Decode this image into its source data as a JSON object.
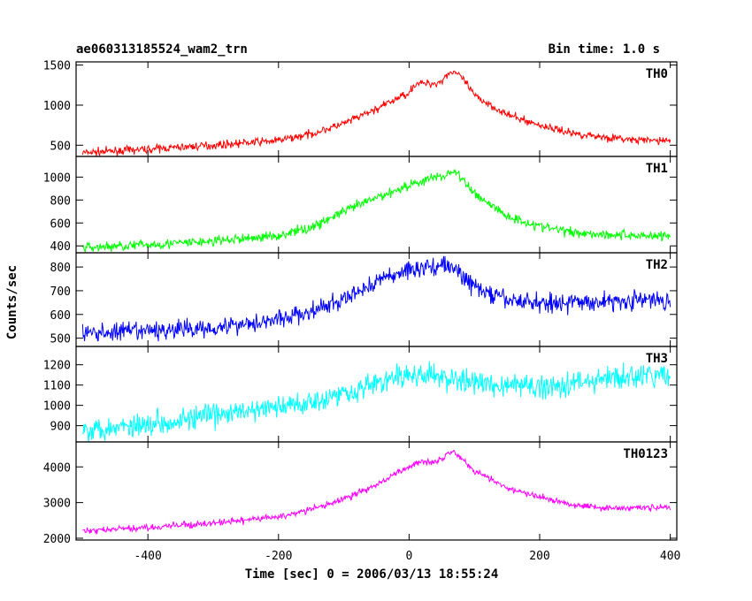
{
  "chart_data": {
    "type": "line",
    "title": "ae060313185524_wam2_trn",
    "bin_time_label": "Bin time: 1.0 s",
    "xlabel": "Time [sec] 0 = 2006/03/13 18:55:24",
    "ylabel": "Counts/sec",
    "xlim": [
      -510,
      410
    ],
    "xticks": [
      -400,
      -200,
      0,
      200,
      400
    ],
    "grid": false,
    "panels": [
      {
        "name": "TH0",
        "color": "#ff0000",
        "ylim": [
          360,
          1540
        ],
        "yticks": [
          500,
          1000,
          1500
        ],
        "noise": 24,
        "x": [
          -500,
          -400,
          -300,
          -200,
          -150,
          -100,
          -50,
          0,
          10,
          40,
          50,
          60,
          70,
          85,
          100,
          150,
          200,
          250,
          300,
          350,
          400
        ],
        "y": [
          405,
          450,
          500,
          560,
          640,
          770,
          950,
          1160,
          1270,
          1270,
          1300,
          1400,
          1420,
          1300,
          1120,
          880,
          750,
          650,
          600,
          560,
          560
        ]
      },
      {
        "name": "TH1",
        "color": "#00ff00",
        "ylim": [
          340,
          1180
        ],
        "yticks": [
          400,
          600,
          800,
          1000
        ],
        "noise": 22,
        "x": [
          -500,
          -400,
          -300,
          -200,
          -150,
          -100,
          -50,
          0,
          40,
          55,
          70,
          85,
          100,
          150,
          200,
          250,
          300,
          350,
          400
        ],
        "y": [
          385,
          410,
          440,
          490,
          560,
          700,
          820,
          930,
          1000,
          1010,
          1060,
          950,
          860,
          660,
          570,
          520,
          500,
          490,
          490
        ]
      },
      {
        "name": "TH2",
        "color": "#0000ff",
        "ylim": [
          465,
          860
        ],
        "yticks": [
          500,
          600,
          700,
          800
        ],
        "noise": 20,
        "x": [
          -500,
          -400,
          -300,
          -200,
          -150,
          -100,
          -50,
          0,
          30,
          55,
          70,
          90,
          110,
          150,
          200,
          250,
          300,
          350,
          400
        ],
        "y": [
          520,
          530,
          545,
          580,
          610,
          660,
          740,
          790,
          800,
          810,
          790,
          740,
          700,
          660,
          650,
          650,
          655,
          660,
          660
        ]
      },
      {
        "name": "TH3",
        "color": "#00ffff",
        "ylim": [
          820,
          1290
        ],
        "yticks": [
          900,
          1000,
          1100,
          1200
        ],
        "noise": 30,
        "x": [
          -500,
          -400,
          -300,
          -200,
          -150,
          -100,
          -50,
          0,
          50,
          100,
          150,
          200,
          250,
          300,
          350,
          400
        ],
        "y": [
          880,
          910,
          950,
          990,
          1020,
          1060,
          1110,
          1150,
          1140,
          1110,
          1100,
          1090,
          1110,
          1130,
          1140,
          1150
        ]
      },
      {
        "name": "TH0123",
        "color": "#ff00ff",
        "ylim": [
          1950,
          4700
        ],
        "yticks": [
          2000,
          3000,
          4000
        ],
        "noise": 45,
        "x": [
          -500,
          -400,
          -300,
          -200,
          -150,
          -100,
          -50,
          0,
          15,
          40,
          50,
          60,
          70,
          85,
          100,
          150,
          200,
          250,
          300,
          350,
          400
        ],
        "y": [
          2200,
          2300,
          2420,
          2600,
          2800,
          3100,
          3500,
          4000,
          4150,
          4150,
          4250,
          4400,
          4420,
          4150,
          3900,
          3400,
          3150,
          2950,
          2850,
          2850,
          2880
        ]
      }
    ]
  }
}
